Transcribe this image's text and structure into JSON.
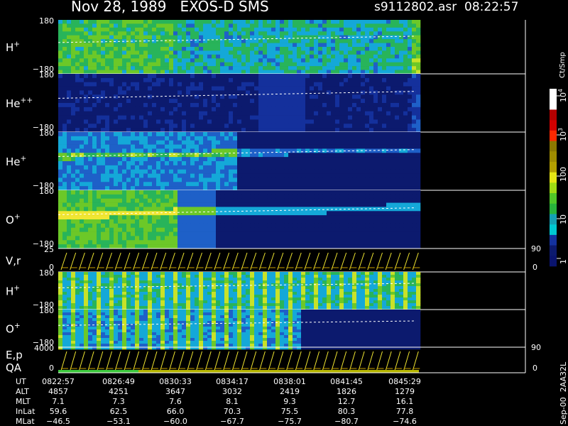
{
  "header": {
    "title": "Nov 28, 1989   EXOS-D SMS",
    "file": "s9112802.asr  08:22:57"
  },
  "panels": [
    {
      "label": "H",
      "sup": "+",
      "ticks": [
        "180",
        "−180"
      ]
    },
    {
      "label": "He",
      "sup": "++",
      "ticks": [
        "180",
        "−180"
      ]
    },
    {
      "label": "He",
      "sup": "+",
      "ticks": [
        "180",
        "−180"
      ]
    },
    {
      "label": "O",
      "sup": "+",
      "ticks": [
        "180",
        "−180"
      ]
    },
    {
      "label": "V,r",
      "ticks": [
        "25",
        "0"
      ],
      "right_ticks": [
        "90",
        "0"
      ]
    },
    {
      "label": "H",
      "sup": "+",
      "ticks": [
        "180",
        "−180"
      ]
    },
    {
      "label": "O",
      "sup": "+",
      "ticks": [
        "180",
        "−180"
      ]
    },
    {
      "label": "E,p",
      "label2": "QA",
      "ticks": [
        "4000",
        "0"
      ],
      "right_ticks": [
        "90",
        "0"
      ]
    }
  ],
  "colorbar": {
    "unit": "Ct/Smp",
    "ticks": [
      {
        "base": "10",
        "sup": "4"
      },
      {
        "base": "10",
        "sup": "3"
      },
      "100",
      "10",
      "1"
    ]
  },
  "footer_id": "Sep-00  2AA32L",
  "table": {
    "rows": [
      [
        "UT",
        "0822:57",
        "0826:49",
        "0830:33",
        "0834:17",
        "0838:01",
        "0841:45",
        "0845:29"
      ],
      [
        "ALT",
        "4857",
        "4251",
        "3647",
        "3032",
        "2419",
        "1826",
        "1279"
      ],
      [
        "MLT",
        "7.1",
        "7.3",
        "7.6",
        "8.1",
        "9.3",
        "12.7",
        "16.1"
      ],
      [
        "InLat",
        "59.6",
        "62.5",
        "66.0",
        "70.3",
        "75.5",
        "80.3",
        "77.8"
      ],
      [
        "MLat",
        "−46.5",
        "−53.1",
        "−60.0",
        "−67.7",
        "−75.7",
        "−80.7",
        "−74.6"
      ]
    ]
  }
}
